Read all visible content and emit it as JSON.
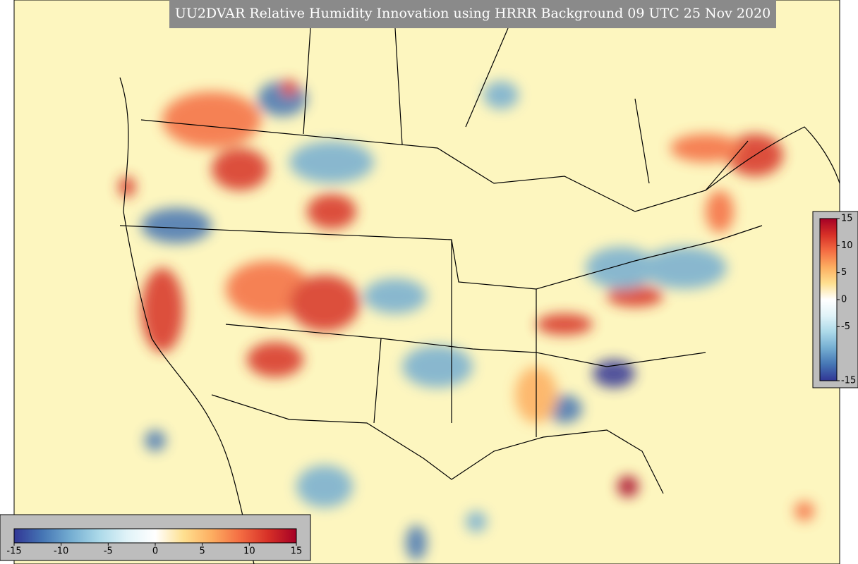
{
  "title": "UU2DVAR Relative Humidity Innovation using HRRR Background 09 UTC 25 Nov 2020",
  "colormap": [
    "#313695",
    "#4575b4",
    "#74add1",
    "#abd9e9",
    "#e0f3f8",
    "#ffffff",
    "#fee090",
    "#fdae61",
    "#f46d43",
    "#d73027",
    "#a50026"
  ],
  "colorbars": [
    {
      "orientation": "horizontal",
      "range": [
        -15,
        15
      ],
      "ticks": [
        -15,
        -10,
        -5,
        0,
        5,
        10,
        15
      ]
    },
    {
      "orientation": "vertical",
      "range": [
        -15,
        15
      ],
      "ticks": [
        -15,
        -5,
        0,
        5,
        10,
        15
      ]
    }
  ]
}
